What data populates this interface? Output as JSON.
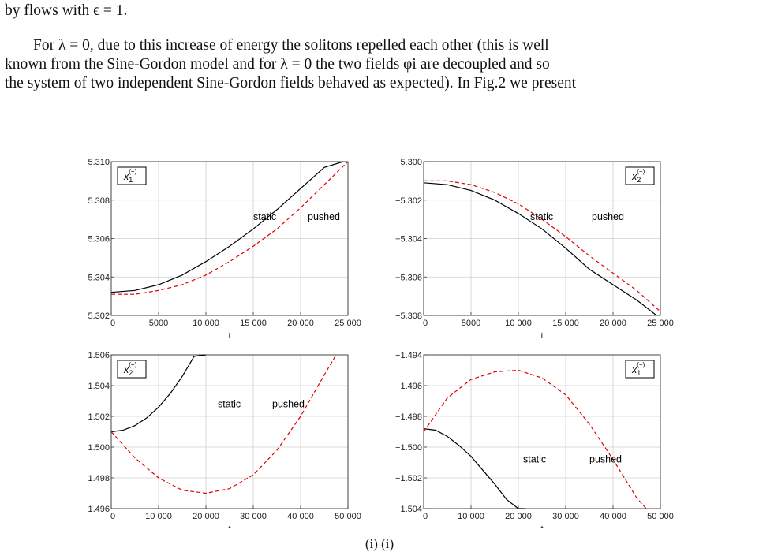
{
  "text": {
    "line1": "by flows with ϵ = 1.",
    "line2": "For λ = 0, due to this increase of energy the solitons repelled each other (this is well",
    "line3": "known from the Sine-Gordon model and for λ = 0 the two fields φi are decoupled and so",
    "line4": "the system of two independent Sine-Gordon fields behaved as expected). In Fig.2 we present",
    "caption": "(i)         (i)"
  },
  "colors": {
    "static": "#000000",
    "pushed": "#e00000",
    "grid": "#cfcfcf"
  },
  "chart_data": [
    {
      "type": "line",
      "legend_box": "x1(+)",
      "xlabel": "t",
      "xlim": [
        0,
        25000
      ],
      "ylim": [
        5.302,
        5.31
      ],
      "xticks": [
        0,
        5000,
        10000,
        15000,
        20000,
        25000
      ],
      "xtick_labels": [
        "0",
        "5000",
        "10 000",
        "15 000",
        "20 000",
        "25 000"
      ],
      "yticks": [
        5.302,
        5.304,
        5.306,
        5.308,
        5.31
      ],
      "ytick_labels": [
        "5.302",
        "5.304",
        "5.306",
        "5.308",
        "5.310"
      ],
      "annotations": [
        "static",
        "pushed"
      ],
      "series": [
        {
          "name": "static",
          "x": [
            0,
            2500,
            5000,
            7500,
            10000,
            12500,
            15000,
            17500,
            20000,
            22500,
            24500
          ],
          "y": [
            5.3032,
            5.3033,
            5.3036,
            5.3041,
            5.3048,
            5.3056,
            5.3065,
            5.3075,
            5.3086,
            5.3097,
            5.3108
          ]
        },
        {
          "name": "pushed",
          "x": [
            0,
            2500,
            5000,
            7500,
            10000,
            12500,
            15000,
            17500,
            20000,
            22500,
            25000
          ],
          "y": [
            5.3031,
            5.3031,
            5.3033,
            5.3036,
            5.3041,
            5.3048,
            5.3056,
            5.3065,
            5.3076,
            5.3088,
            5.3101
          ]
        }
      ]
    },
    {
      "type": "line",
      "legend_box": "x2(−)",
      "xlabel": "t",
      "xlim": [
        0,
        25000
      ],
      "ylim": [
        -5.308,
        -5.3
      ],
      "xticks": [
        0,
        5000,
        10000,
        15000,
        20000,
        25000
      ],
      "xtick_labels": [
        "0",
        "5000",
        "10 000",
        "15 000",
        "20 000",
        "25 000"
      ],
      "yticks": [
        -5.3,
        -5.302,
        -5.304,
        -5.306,
        -5.308
      ],
      "ytick_labels": [
        "−5.300",
        "−5.302",
        "−5.304",
        "−5.306",
        "−5.308"
      ],
      "annotations": [
        "static",
        "pushed"
      ],
      "series": [
        {
          "name": "static",
          "x": [
            0,
            2500,
            5000,
            7500,
            10000,
            12500,
            15000,
            17500,
            20000,
            22500,
            24600
          ],
          "y": [
            -5.3011,
            -5.3012,
            -5.3015,
            -5.302,
            -5.3027,
            -5.3035,
            -5.3045,
            -5.3056,
            -5.3064,
            -5.3072,
            -5.308
          ]
        },
        {
          "name": "pushed",
          "x": [
            0,
            2500,
            5000,
            7500,
            10000,
            12500,
            15000,
            17500,
            20000,
            22500,
            25000
          ],
          "y": [
            -5.301,
            -5.301,
            -5.3012,
            -5.3016,
            -5.3022,
            -5.303,
            -5.3039,
            -5.3049,
            -5.3058,
            -5.3067,
            -5.3078
          ]
        }
      ]
    },
    {
      "type": "line",
      "legend_box": "x2(+)",
      "xlabel": "t",
      "xlim": [
        0,
        50000
      ],
      "ylim": [
        1.496,
        1.506
      ],
      "xticks": [
        0,
        10000,
        20000,
        30000,
        40000,
        50000
      ],
      "xtick_labels": [
        "0",
        "10 000",
        "20 000",
        "30 000",
        "40 000",
        "50 000"
      ],
      "yticks": [
        1.496,
        1.498,
        1.5,
        1.502,
        1.504,
        1.506
      ],
      "ytick_labels": [
        "1.496",
        "1.498",
        "1.500",
        "1.502",
        "1.504",
        "1.506"
      ],
      "annotations": [
        "static",
        "pushed"
      ],
      "series": [
        {
          "name": "static",
          "x": [
            0,
            2500,
            5000,
            7500,
            10000,
            12500,
            15000,
            17500,
            20000
          ],
          "y": [
            1.501,
            1.5011,
            1.5014,
            1.5019,
            1.5026,
            1.5035,
            1.5046,
            1.5059,
            1.5061
          ]
        },
        {
          "name": "pushed",
          "x": [
            0,
            5000,
            10000,
            15000,
            20000,
            25000,
            30000,
            35000,
            40000,
            45000,
            47500
          ],
          "y": [
            1.501,
            1.4993,
            1.498,
            1.4972,
            1.497,
            1.4973,
            1.4982,
            1.4998,
            1.502,
            1.5047,
            1.5061
          ]
        }
      ]
    },
    {
      "type": "line",
      "legend_box": "x1(−)",
      "xlabel": "t",
      "xlim": [
        0,
        50000
      ],
      "ylim": [
        -1.504,
        -1.494
      ],
      "xticks": [
        0,
        10000,
        20000,
        30000,
        40000,
        50000
      ],
      "xtick_labels": [
        "0",
        "10 000",
        "20 000",
        "30 000",
        "40 000",
        "50 000"
      ],
      "yticks": [
        -1.494,
        -1.496,
        -1.498,
        -1.5,
        -1.502,
        -1.504
      ],
      "ytick_labels": [
        "−1.494",
        "−1.496",
        "−1.498",
        "−1.500",
        "−1.502",
        "−1.504"
      ],
      "annotations": [
        "static",
        "pushed"
      ],
      "series": [
        {
          "name": "static",
          "x": [
            0,
            2500,
            5000,
            7500,
            10000,
            12500,
            15000,
            17500,
            20000,
            21500
          ],
          "y": [
            -1.4988,
            -1.4989,
            -1.4993,
            -1.4999,
            -1.5006,
            -1.5015,
            -1.5024,
            -1.5034,
            -1.504,
            -1.5043
          ]
        },
        {
          "name": "pushed",
          "x": [
            0,
            5000,
            10000,
            15000,
            20000,
            25000,
            30000,
            35000,
            40000,
            45000,
            47000
          ],
          "y": [
            -1.499,
            -1.4968,
            -1.4956,
            -1.4951,
            -1.495,
            -1.4955,
            -1.4966,
            -1.4985,
            -1.5008,
            -1.5033,
            -1.5043
          ]
        }
      ]
    }
  ]
}
